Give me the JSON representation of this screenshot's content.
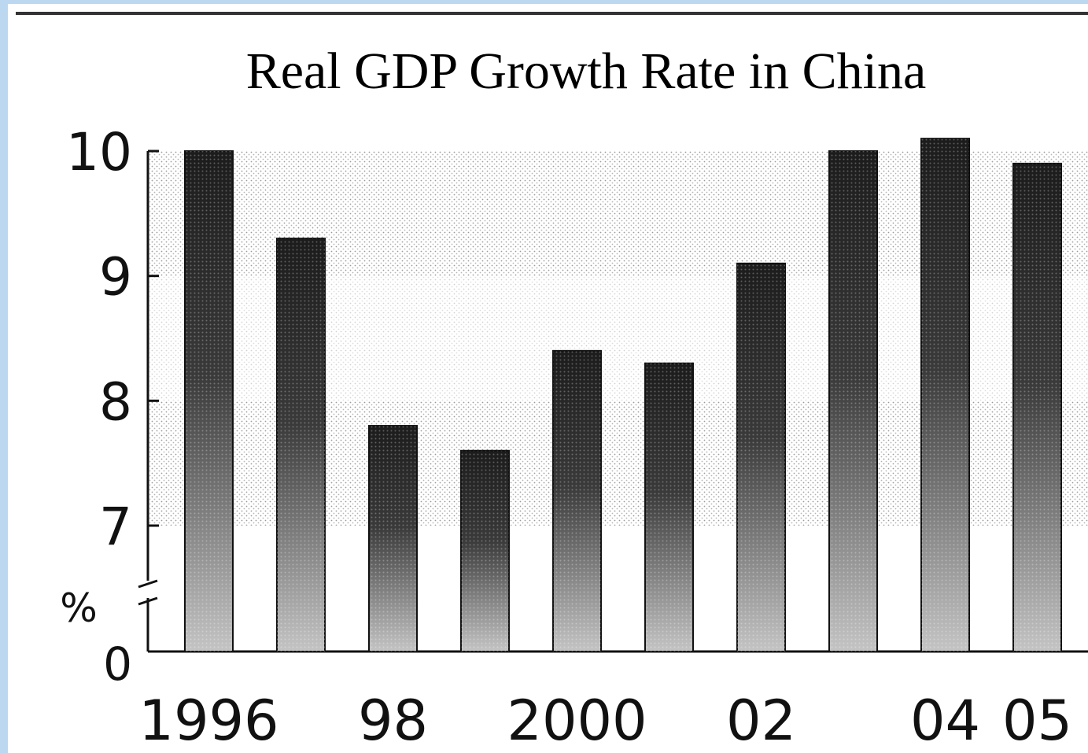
{
  "chart_data": {
    "type": "bar",
    "title": "Real GDP Growth Rate in China",
    "ylabel": "%",
    "x": [
      1996,
      1997,
      1998,
      1999,
      2000,
      2001,
      2002,
      2003,
      2004,
      2005
    ],
    "values": [
      10.0,
      9.3,
      7.8,
      7.6,
      8.4,
      8.3,
      9.1,
      10.0,
      10.1,
      9.9
    ],
    "x_tick_labels": [
      {
        "x": 1996,
        "label": "1996"
      },
      {
        "x": 1998,
        "label": "98"
      },
      {
        "x": 2000,
        "label": "2000"
      },
      {
        "x": 2002,
        "label": "02"
      },
      {
        "x": 2004,
        "label": "04"
      },
      {
        "x": 2005,
        "label": "05"
      }
    ],
    "y_tick_labels": [
      {
        "value": 0,
        "label": "0"
      },
      {
        "value": 7,
        "label": "7"
      },
      {
        "value": 8,
        "label": "8"
      },
      {
        "value": 9,
        "label": "9"
      },
      {
        "value": 10,
        "label": "10"
      }
    ],
    "ylim": [
      7,
      10
    ],
    "axis_break": true,
    "grid": false,
    "legend": "none",
    "colors": {
      "bar_dark": "#1c1c1c",
      "bar_light": "#c4c4c4",
      "background_band": "#e7e7e7",
      "frame_border": "#bcd7f0"
    }
  }
}
